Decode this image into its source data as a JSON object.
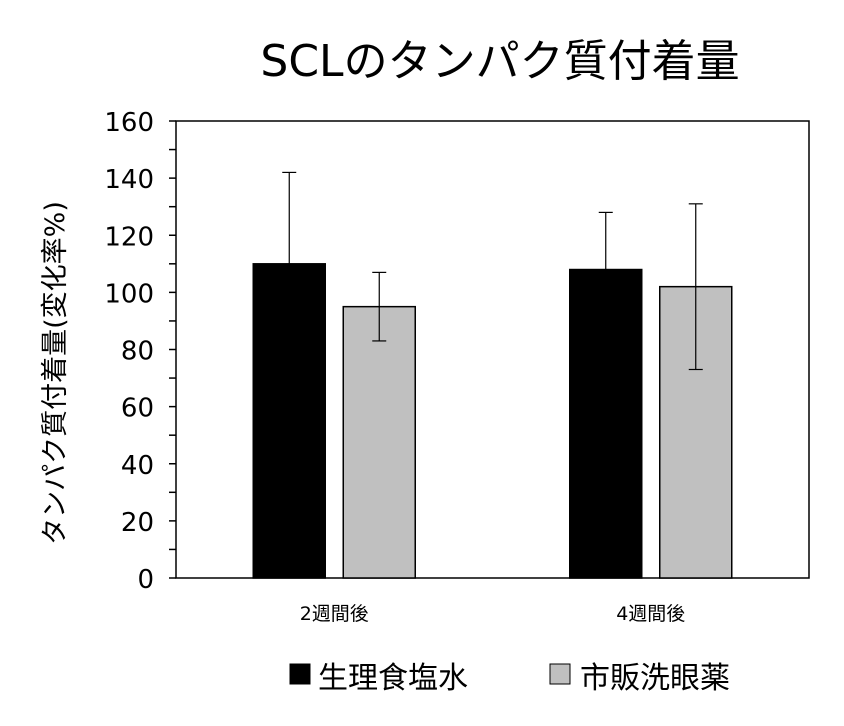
{
  "chart_data": {
    "type": "bar",
    "title": "SCLのタンパク質付着量",
    "xlabel": "",
    "ylabel": "タンパク質付着量(変化率%)",
    "ylim": [
      0,
      160
    ],
    "yticks": [
      0,
      20,
      40,
      60,
      80,
      100,
      120,
      140,
      160
    ],
    "categories": [
      "2週間後",
      "4週間後"
    ],
    "series": [
      {
        "name": "生理食塩水",
        "values": [
          110,
          108
        ],
        "errors": [
          32,
          20
        ],
        "color": "#000000"
      },
      {
        "name": "市販洗眼薬",
        "values": [
          95,
          102
        ],
        "errors": [
          12,
          29
        ],
        "color": "#c0c0c0"
      }
    ],
    "legend_position": "bottom-right",
    "grid": false
  }
}
